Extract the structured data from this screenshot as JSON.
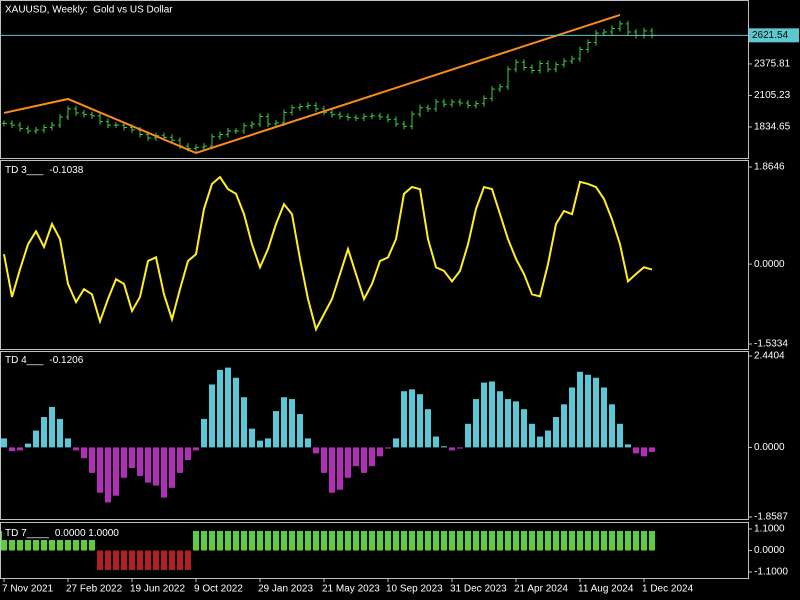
{
  "chart_data": [
    {
      "type": "price_bars",
      "title": "XAUUSD, Weekly:  Gold vs US Dollar",
      "color": "#3ccf3c",
      "values": [
        1865,
        1850,
        1820,
        1800,
        1810,
        1830,
        1850,
        1920,
        1990,
        1955,
        1940,
        1930,
        1880,
        1850,
        1850,
        1830,
        1810,
        1770,
        1740,
        1760,
        1745,
        1720,
        1670,
        1650,
        1660,
        1670,
        1750,
        1770,
        1800,
        1800,
        1845,
        1860,
        1925,
        1860,
        1870,
        1960,
        2000,
        2010,
        2020,
        1990,
        1960,
        1940,
        1925,
        1915,
        1910,
        1925,
        1930,
        1920,
        1900,
        1860,
        1840,
        1945,
        2000,
        1990,
        2050,
        2030,
        2050,
        2040,
        2020,
        2035,
        2080,
        2160,
        2180,
        2330,
        2390,
        2345,
        2320,
        2380,
        2330,
        2370,
        2400,
        2420,
        2500,
        2560,
        2640,
        2650,
        2680,
        2720,
        2650,
        2620,
        2660,
        2621.54
      ],
      "zigzag": {
        "x": [
          0,
          8,
          24,
          77
        ],
        "values": [
          1955,
          2075,
          1611,
          2797
        ],
        "color": "#ff8c1a"
      },
      "last_price": 2621.54,
      "price_line_color": "#5cc8d0",
      "ylim": [
        1568,
        2925
      ],
      "yticks": [
        2375.81,
        2105.23,
        1834.65
      ]
    },
    {
      "type": "line",
      "title": "TD 3___",
      "color": "#ffee22",
      "values": [
        0.19,
        -0.63,
        -0.1,
        0.38,
        0.63,
        0.33,
        0.77,
        0.48,
        -0.38,
        -0.73,
        -0.48,
        -0.58,
        -1.1,
        -0.67,
        -0.29,
        -0.38,
        -0.9,
        -0.63,
        0.06,
        0.13,
        -0.58,
        -1.06,
        -0.48,
        0.06,
        0.19,
        1.06,
        1.54,
        1.67,
        1.44,
        1.35,
        0.96,
        0.38,
        -0.06,
        0.29,
        0.77,
        1.15,
        0.96,
        0.1,
        -0.67,
        -1.25,
        -0.96,
        -0.67,
        -0.19,
        0.29,
        -0.19,
        -0.67,
        -0.38,
        0.06,
        0.13,
        0.48,
        1.35,
        1.48,
        1.44,
        0.48,
        -0.06,
        -0.13,
        -0.33,
        -0.13,
        0.38,
        1.06,
        1.48,
        1.44,
        0.96,
        0.48,
        0.1,
        -0.19,
        -0.58,
        -0.62,
        0.0,
        0.77,
        1.02,
        0.96,
        1.58,
        1.54,
        1.48,
        1.25,
        0.86,
        0.38,
        -0.33,
        -0.19,
        -0.06,
        -0.1038
      ],
      "ylim": [
        -1.5334,
        1.8646
      ],
      "yticks": [
        1.8646,
        {
          "value": 0,
          "label": "0.0000"
        },
        -1.5334
      ]
    },
    {
      "type": "bar",
      "title": "TD 4___",
      "color": "#5bc8d8",
      "negative_color": "#b22fb8",
      "values": [
        0.24,
        -0.1,
        -0.08,
        0.1,
        0.45,
        0.81,
        1.08,
        0.76,
        0.24,
        -0.08,
        -0.29,
        -0.68,
        -1.21,
        -1.47,
        -1.29,
        -0.81,
        -0.55,
        -0.76,
        -0.94,
        -1.02,
        -1.34,
        -1.08,
        -0.68,
        -0.34,
        -0.08,
        0.76,
        1.68,
        2.07,
        2.13,
        1.86,
        1.34,
        0.5,
        0.18,
        0.24,
        0.97,
        1.34,
        1.29,
        0.89,
        0.24,
        -0.16,
        -0.68,
        -1.21,
        -1.13,
        -0.81,
        -0.5,
        -0.68,
        -0.5,
        -0.24,
        -0.03,
        0.24,
        1.5,
        1.55,
        1.42,
        1.02,
        0.29,
        0.03,
        -0.08,
        -0.03,
        0.63,
        1.29,
        1.73,
        1.76,
        1.5,
        1.29,
        1.23,
        1.02,
        0.63,
        0.29,
        0.45,
        0.81,
        1.15,
        1.6,
        2.02,
        1.94,
        1.86,
        1.6,
        1.15,
        0.63,
        0.08,
        -0.16,
        -0.24,
        -0.1206
      ],
      "ylim": [
        -1.8587,
        2.4404
      ],
      "yticks": [
        2.4404,
        {
          "value": 0,
          "label": "0.0000"
        },
        -1.8587
      ]
    },
    {
      "type": "bar",
      "title": "TD 7____",
      "status": "0.0000 1.0000",
      "color": "#5ccc44",
      "negative_color": "#b02020",
      "values": [
        1,
        1,
        1,
        1,
        1,
        1,
        1,
        1,
        1,
        1,
        1,
        1,
        -1,
        -1,
        -1,
        -1,
        -1,
        -1,
        -1,
        -1,
        -1,
        -1,
        -1,
        -1,
        1,
        1,
        1,
        1,
        1,
        1,
        1,
        1,
        1,
        1,
        1,
        1,
        1,
        1,
        1,
        1,
        1,
        1,
        1,
        1,
        1,
        1,
        1,
        1,
        1,
        1,
        1,
        1,
        1,
        1,
        1,
        1,
        1,
        1,
        1,
        1,
        1,
        1,
        1,
        1,
        1,
        1,
        1,
        1,
        1,
        1,
        1,
        1,
        1,
        1,
        1,
        1,
        1,
        1,
        1,
        1,
        1,
        1
      ],
      "ylim": [
        -1.1,
        1.1
      ],
      "yticks": [
        {
          "value": 1.1,
          "label": "1.1000"
        },
        {
          "value": 0,
          "label": "0.0000"
        },
        {
          "value": -1.1,
          "label": "-1.1000"
        }
      ],
      "categories": [
        "7 Nov 2021",
        null,
        null,
        null,
        null,
        null,
        null,
        null,
        "27 Feb 2022",
        null,
        null,
        null,
        null,
        null,
        null,
        null,
        "19 Jun 2022",
        null,
        null,
        null,
        null,
        null,
        null,
        null,
        "9 Oct 2022",
        null,
        null,
        null,
        null,
        null,
        null,
        null,
        "29 Jan 2023",
        null,
        null,
        null,
        null,
        null,
        null,
        null,
        "21 May 2023",
        null,
        null,
        null,
        null,
        null,
        null,
        null,
        "10 Sep 2023",
        null,
        null,
        null,
        null,
        null,
        null,
        null,
        "31 Dec 2023",
        null,
        null,
        null,
        null,
        null,
        null,
        null,
        "21 Apr 2024",
        null,
        null,
        null,
        null,
        null,
        null,
        null,
        "11 Aug 2024",
        null,
        null,
        null,
        null,
        null,
        null,
        null,
        "1 Dec 2024",
        null
      ]
    }
  ]
}
